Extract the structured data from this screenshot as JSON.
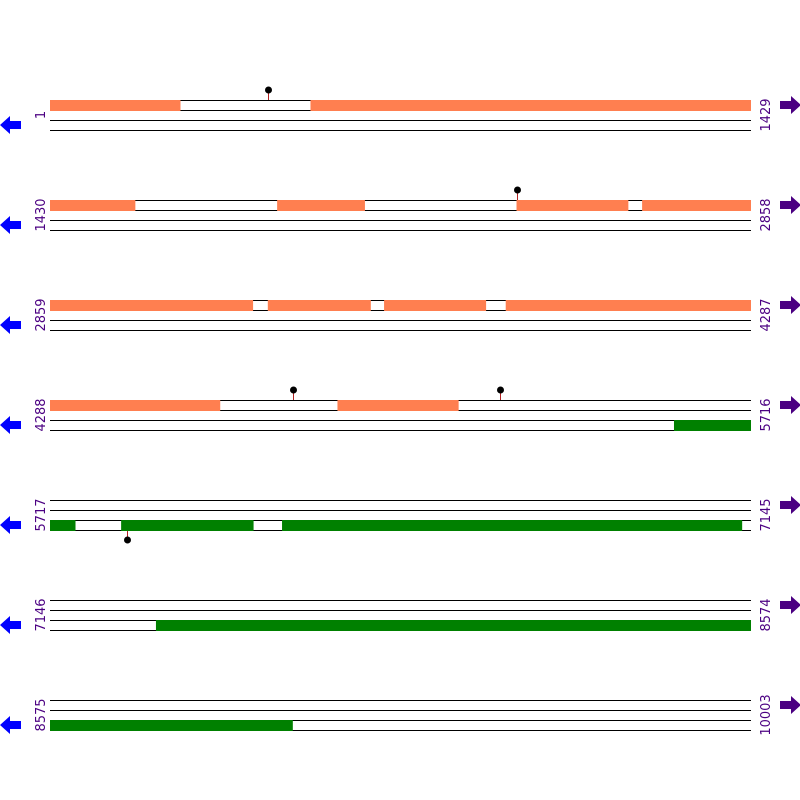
{
  "colors": {
    "forward_feature": "#ff7f50",
    "reverse_feature": "#008000",
    "forward_arrow": "#4b0082",
    "reverse_arrow": "#0000ff",
    "marker_stem": "#b22222",
    "marker_head": "#000000",
    "label": "#4b0082",
    "track_line": "#000000"
  },
  "icons": {
    "forward": "right-arrow-icon",
    "reverse": "left-arrow-icon",
    "site": "lollipop-marker-icon"
  },
  "rows": [
    {
      "start": 1,
      "end": 1429,
      "start_label": "1",
      "end_label": "1429",
      "tracks": [
        {
          "strand": "forward",
          "segments": [
            [
              1,
              266
            ],
            [
              532,
              1429
            ]
          ]
        },
        {
          "strand": "reverse",
          "segments": []
        }
      ],
      "markers": [
        {
          "pos": 445,
          "strand": "forward"
        }
      ]
    },
    {
      "start": 1430,
      "end": 2858,
      "start_label": "1430",
      "end_label": "2858",
      "tracks": [
        {
          "strand": "forward",
          "segments": [
            [
              1430,
              1603
            ],
            [
              1893,
              2071
            ],
            [
              2381,
              2608
            ],
            [
              2637,
              2858
            ]
          ]
        },
        {
          "strand": "reverse",
          "segments": []
        }
      ],
      "markers": [
        {
          "pos": 2382,
          "strand": "forward"
        }
      ]
    },
    {
      "start": 2859,
      "end": 4287,
      "start_label": "2859",
      "end_label": "4287",
      "tracks": [
        {
          "strand": "forward",
          "segments": [
            [
              2859,
              3272
            ],
            [
              3303,
              3512
            ],
            [
              3540,
              3747
            ],
            [
              3788,
              4287
            ]
          ]
        },
        {
          "strand": "reverse",
          "segments": []
        }
      ],
      "markers": []
    },
    {
      "start": 4288,
      "end": 5716,
      "start_label": "4288",
      "end_label": "5716",
      "tracks": [
        {
          "strand": "forward",
          "segments": [
            [
              4288,
              4634
            ],
            [
              4874,
              5120
            ]
          ]
        },
        {
          "strand": "reverse",
          "segments": [
            [
              5560,
              5716
            ]
          ]
        }
      ],
      "markers": [
        {
          "pos": 4783,
          "strand": "forward"
        },
        {
          "pos": 5206,
          "strand": "forward"
        }
      ]
    },
    {
      "start": 5717,
      "end": 7145,
      "start_label": "5717",
      "end_label": "7145",
      "tracks": [
        {
          "strand": "forward",
          "segments": []
        },
        {
          "strand": "reverse",
          "segments": [
            [
              5717,
              5768
            ],
            [
              5862,
              6131
            ],
            [
              6190,
              7127
            ]
          ]
        }
      ],
      "markers": [
        {
          "pos": 5873,
          "strand": "reverse"
        }
      ]
    },
    {
      "start": 7146,
      "end": 8574,
      "start_label": "7146",
      "end_label": "8574",
      "tracks": [
        {
          "strand": "forward",
          "segments": []
        },
        {
          "strand": "reverse",
          "segments": [
            [
              7362,
              8574
            ]
          ]
        }
      ],
      "markers": []
    },
    {
      "start": 8575,
      "end": 10003,
      "start_label": "8575",
      "end_label": "10003",
      "tracks": [
        {
          "strand": "forward",
          "segments": []
        },
        {
          "strand": "reverse",
          "segments": [
            [
              8575,
              9069
            ]
          ]
        }
      ],
      "markers": []
    }
  ]
}
